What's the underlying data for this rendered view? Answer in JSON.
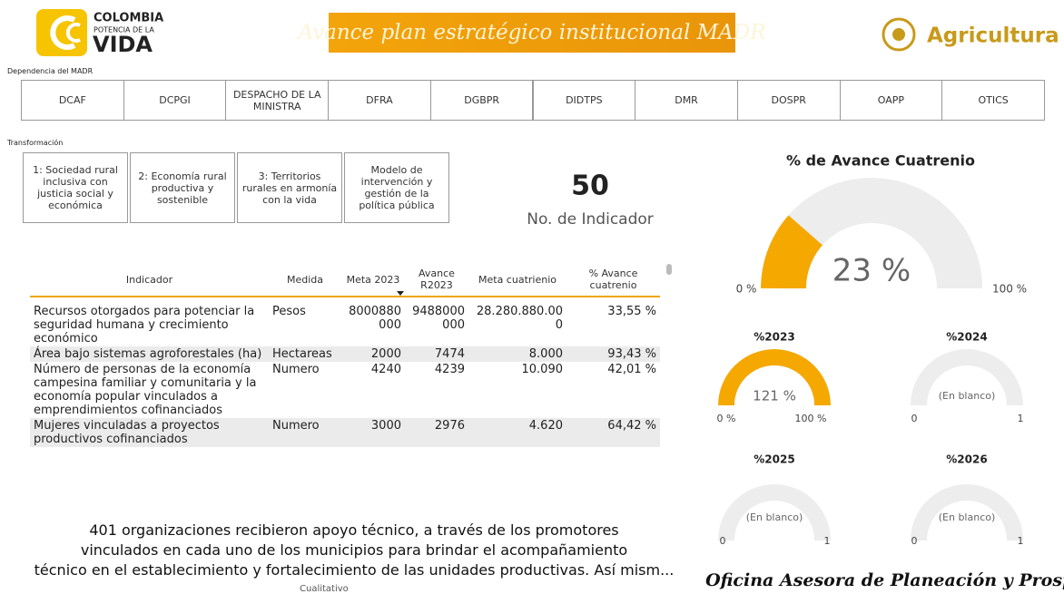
{
  "header": {
    "logo": {
      "line1": "COLOMBIA",
      "line2": "POTENCIA DE LA",
      "line3": "VIDA"
    },
    "banner": "Avance plan estratégico institucional MADR",
    "brand": "Agricultura"
  },
  "dependencia": {
    "label": "Dependencia del MADR",
    "buttons": [
      "DCAF",
      "DCPGI",
      "DESPACHO DE LA MINISTRA",
      "DFRA",
      "DGBPR",
      "DIDTPS",
      "DMR",
      "DOSPR",
      "OAPP",
      "OTICS"
    ]
  },
  "transformacion": {
    "label": "Transformación",
    "buttons": [
      "1: Sociedad rural inclusiva con justicia social y económica",
      "2: Economía rural productiva y sostenible",
      "3: Territorios rurales en armonía con la vida",
      "Modelo de intervención y gestión de la política pública"
    ]
  },
  "kpi": {
    "value": "50",
    "label": "No. de Indicador"
  },
  "table": {
    "headers": [
      "Indicador",
      "Medida",
      "Meta 2023",
      "Avance R2023",
      "Meta cuatrienio",
      "% Avance cuatrenio"
    ],
    "rows": [
      [
        "Recursos otorgados para potenciar la seguridad humana y crecimiento económico",
        "Pesos",
        "8000880000",
        "9488000000",
        "28.280.880.000",
        "33,55 %"
      ],
      [
        "Área bajo sistemas agroforestales (ha)",
        "Hectareas",
        "2000",
        "7474",
        "8.000",
        "93,43 %"
      ],
      [
        "Número de personas de la economía campesina familiar y comunitaria y la economía popular vinculados a emprendimientos cofinanciados",
        "Numero",
        "4240",
        "4239",
        "10.090",
        "42,01 %"
      ],
      [
        "Mujeres vinculadas a proyectos productivos cofinanciados",
        "Numero",
        "3000",
        "2976",
        "4.620",
        "64,42 %"
      ]
    ]
  },
  "gauges": [
    {
      "title": "% de Avance Cuatrenio",
      "value": 23,
      "value_label": "23 %",
      "min": {
        "value": 0,
        "label": "0 %"
      },
      "max": {
        "value": 100,
        "label": "100 %"
      }
    },
    {
      "title": "%2023",
      "value": 121,
      "value_label": "121 %",
      "min": {
        "value": 0,
        "label": "0 %"
      },
      "max": {
        "value": 100,
        "label": "100 %"
      }
    },
    {
      "title": "%2024",
      "value": null,
      "value_label": "(En blanco)",
      "min": 0,
      "max": 1
    },
    {
      "title": "%2025",
      "value": null,
      "value_label": "(En blanco)",
      "min": 0,
      "max": 1
    },
    {
      "title": "%2026",
      "value": null,
      "value_label": "(En blanco)",
      "min": 0,
      "max": 1
    }
  ],
  "summary": {
    "lines": [
      "401 organizaciones recibieron apoyo técnico, a través de los promotores",
      "vinculados en cada uno de los municipios para brindar el acompañamiento",
      "técnico en el establecimiento y fortalecimiento de las unidades productivas. Así mism..."
    ],
    "caption": "Cualitativo"
  },
  "footer": "Oficina Asesora de Planeación y Prospectiva."
}
